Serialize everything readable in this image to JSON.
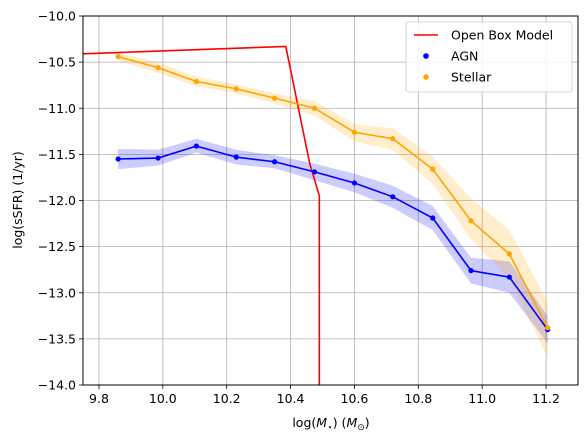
{
  "chart_data": {
    "type": "line",
    "title": "",
    "xlabel": "log(M_⋆) (M_⊙)",
    "ylabel": "log(sSFR) (1/yr)",
    "xlim": [
      9.75,
      11.3
    ],
    "ylim": [
      -14.0,
      -10.0
    ],
    "xticks": [
      9.8,
      10.0,
      10.2,
      10.4,
      10.6,
      10.8,
      11.0,
      11.2
    ],
    "yticks": [
      -14.0,
      -13.5,
      -13.0,
      -12.5,
      -12.0,
      -11.5,
      -11.0,
      -10.5,
      -10.0
    ],
    "grid": true,
    "legend_position": "top-right",
    "series": [
      {
        "name": "Open Box Model",
        "kind": "line",
        "color": "#ff0000",
        "x": [
          9.75,
          10.385,
          10.46,
          10.49,
          10.49
        ],
        "y": [
          -10.41,
          -10.33,
          -11.6,
          -11.95,
          -14.0
        ]
      },
      {
        "name": "AGN",
        "kind": "line-points-band",
        "color": "#0000ff",
        "x": [
          9.86,
          9.985,
          10.105,
          10.23,
          10.35,
          10.475,
          10.6,
          10.72,
          10.845,
          10.965,
          11.085,
          11.205
        ],
        "y": [
          -11.55,
          -11.54,
          -11.41,
          -11.53,
          -11.58,
          -11.69,
          -11.81,
          -11.96,
          -12.19,
          -12.76,
          -12.83,
          -13.4
        ],
        "lower": [
          -11.66,
          -11.62,
          -11.48,
          -11.61,
          -11.65,
          -11.78,
          -11.91,
          -12.08,
          -12.32,
          -12.9,
          -13.0,
          -13.55
        ],
        "upper": [
          -11.44,
          -11.45,
          -11.33,
          -11.45,
          -11.51,
          -11.6,
          -11.71,
          -11.84,
          -12.06,
          -12.62,
          -12.66,
          -13.25
        ]
      },
      {
        "name": "Stellar",
        "kind": "line-points-band",
        "color": "#ffa500",
        "x": [
          9.86,
          9.985,
          10.105,
          10.23,
          10.35,
          10.475,
          10.6,
          10.72,
          10.845,
          10.965,
          11.085,
          11.205
        ],
        "y": [
          -10.44,
          -10.56,
          -10.71,
          -10.79,
          -10.89,
          -11.0,
          -11.26,
          -11.33,
          -11.66,
          -12.22,
          -12.58,
          -13.38
        ],
        "lower": [
          -10.48,
          -10.62,
          -10.76,
          -10.84,
          -10.95,
          -11.08,
          -11.36,
          -11.45,
          -11.82,
          -12.42,
          -12.85,
          -13.7
        ],
        "upper": [
          -10.4,
          -10.5,
          -10.66,
          -10.74,
          -10.84,
          -10.92,
          -11.17,
          -11.22,
          -11.52,
          -11.98,
          -12.32,
          -13.1
        ]
      }
    ]
  }
}
